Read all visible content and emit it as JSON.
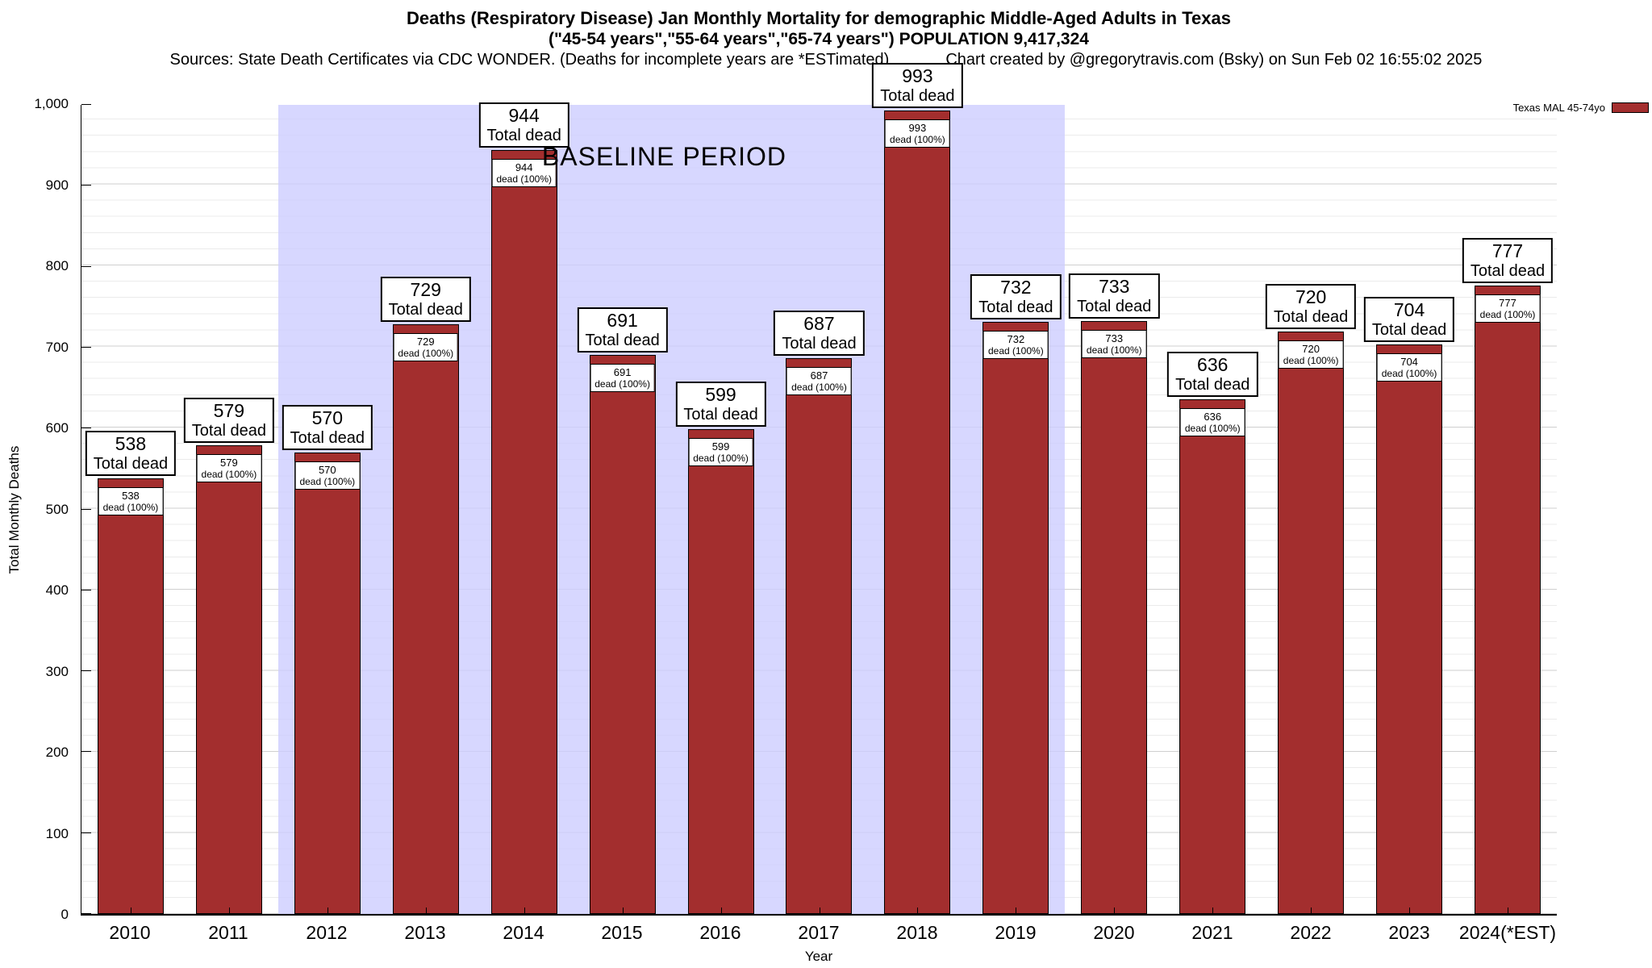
{
  "titles": {
    "line1": "Deaths (Respiratory Disease) Jan Monthly Mortality for demographic Middle-Aged Adults in Texas",
    "line2": "(\"45-54 years\",\"55-64 years\",\"65-74 years\") POPULATION 9,417,324",
    "sources": "Sources: State Death Certificates via CDC WONDER. (Deaths for incomplete years are *ESTimated)",
    "credit": "Chart created by @gregorytravis.com (Bsky) on Sun Feb 02 16:55:02 2025"
  },
  "legend": {
    "label": "Texas MAL 45-74yo"
  },
  "baseline_label": "BASELINE PERIOD",
  "axes": {
    "ylabel": "Total Monthly Deaths",
    "xlabel": "Year",
    "y_ticks": [
      "0",
      "100",
      "200",
      "300",
      "400",
      "500",
      "600",
      "700",
      "800",
      "900",
      "1,000"
    ]
  },
  "chart_data": {
    "type": "bar",
    "title": "Deaths (Respiratory Disease) Jan Monthly Mortality for demographic Middle-Aged Adults in Texas",
    "subtitle": "(\"45-54 years\",\"55-64 years\",\"65-74 years\") POPULATION 9,417,324",
    "categories": [
      "2010",
      "2011",
      "2012",
      "2013",
      "2014",
      "2015",
      "2016",
      "2017",
      "2018",
      "2019",
      "2020",
      "2021",
      "2022",
      "2023",
      "2024(*EST)"
    ],
    "values": [
      538,
      579,
      570,
      729,
      944,
      691,
      599,
      687,
      993,
      732,
      733,
      636,
      720,
      704,
      777
    ],
    "series_name": "Texas MAL 45-74yo",
    "xlabel": "Year",
    "ylabel": "Total Monthly Deaths",
    "ylim": [
      0,
      1000
    ],
    "grid": true,
    "legend_position": "top-right",
    "bar_label_suffix": "Total dead",
    "inner_label_suffix": "dead (100%)",
    "baseline_period": {
      "start": "2012",
      "end": "2019"
    },
    "colors": {
      "bar": "#a32e2e",
      "baseline_band": "#ccccff"
    }
  }
}
